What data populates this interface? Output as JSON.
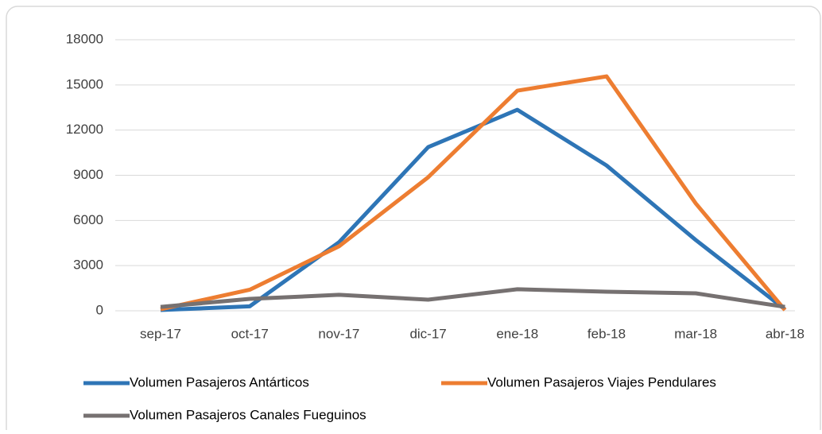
{
  "chart_data": {
    "type": "line",
    "categories": [
      "sep-17",
      "oct-17",
      "nov-17",
      "dic-17",
      "ene-18",
      "feb-18",
      "mar-18",
      "abr-18"
    ],
    "series": [
      {
        "name": "Volumen Pasajeros Antárticos",
        "color": "#2e75b6",
        "values": [
          50,
          300,
          4550,
          10870,
          13350,
          9650,
          4700,
          100
        ]
      },
      {
        "name": "Volumen Pasajeros Viajes Pendulares",
        "color": "#ed7d31",
        "values": [
          100,
          1400,
          4280,
          8870,
          14620,
          15570,
          7130,
          50
        ]
      },
      {
        "name": "Volumen Pasajeros Canales Fueguinos",
        "color": "#767171",
        "values": [
          260,
          790,
          1060,
          740,
          1430,
          1270,
          1160,
          260
        ]
      }
    ],
    "ylim": [
      0,
      18000
    ],
    "yticks": [
      0,
      3000,
      6000,
      9000,
      12000,
      15000,
      18000
    ],
    "grid": true,
    "legend": "bottom"
  }
}
